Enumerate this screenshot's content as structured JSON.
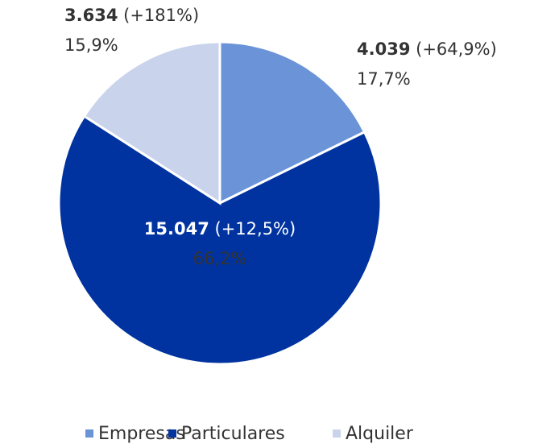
{
  "chart_data": {
    "type": "pie",
    "categories": [
      "Empresas",
      "Particulares",
      "Alquiler"
    ],
    "values": [
      17.7,
      66.2,
      15.9
    ],
    "value_labels": [
      "17,7%",
      "66,2%",
      "15,9%"
    ],
    "counts": [
      4039,
      15047,
      3634
    ],
    "count_labels": [
      "4.039",
      "15.047",
      "3.634"
    ],
    "changes": [
      64.9,
      12.5,
      181
    ],
    "change_labels": [
      "(+64,9%)",
      "(+12,5%)",
      "(+181%)"
    ],
    "colors": [
      "#6a93d8",
      "#0033a0",
      "#c9d4ec"
    ],
    "legend": "bottom"
  }
}
